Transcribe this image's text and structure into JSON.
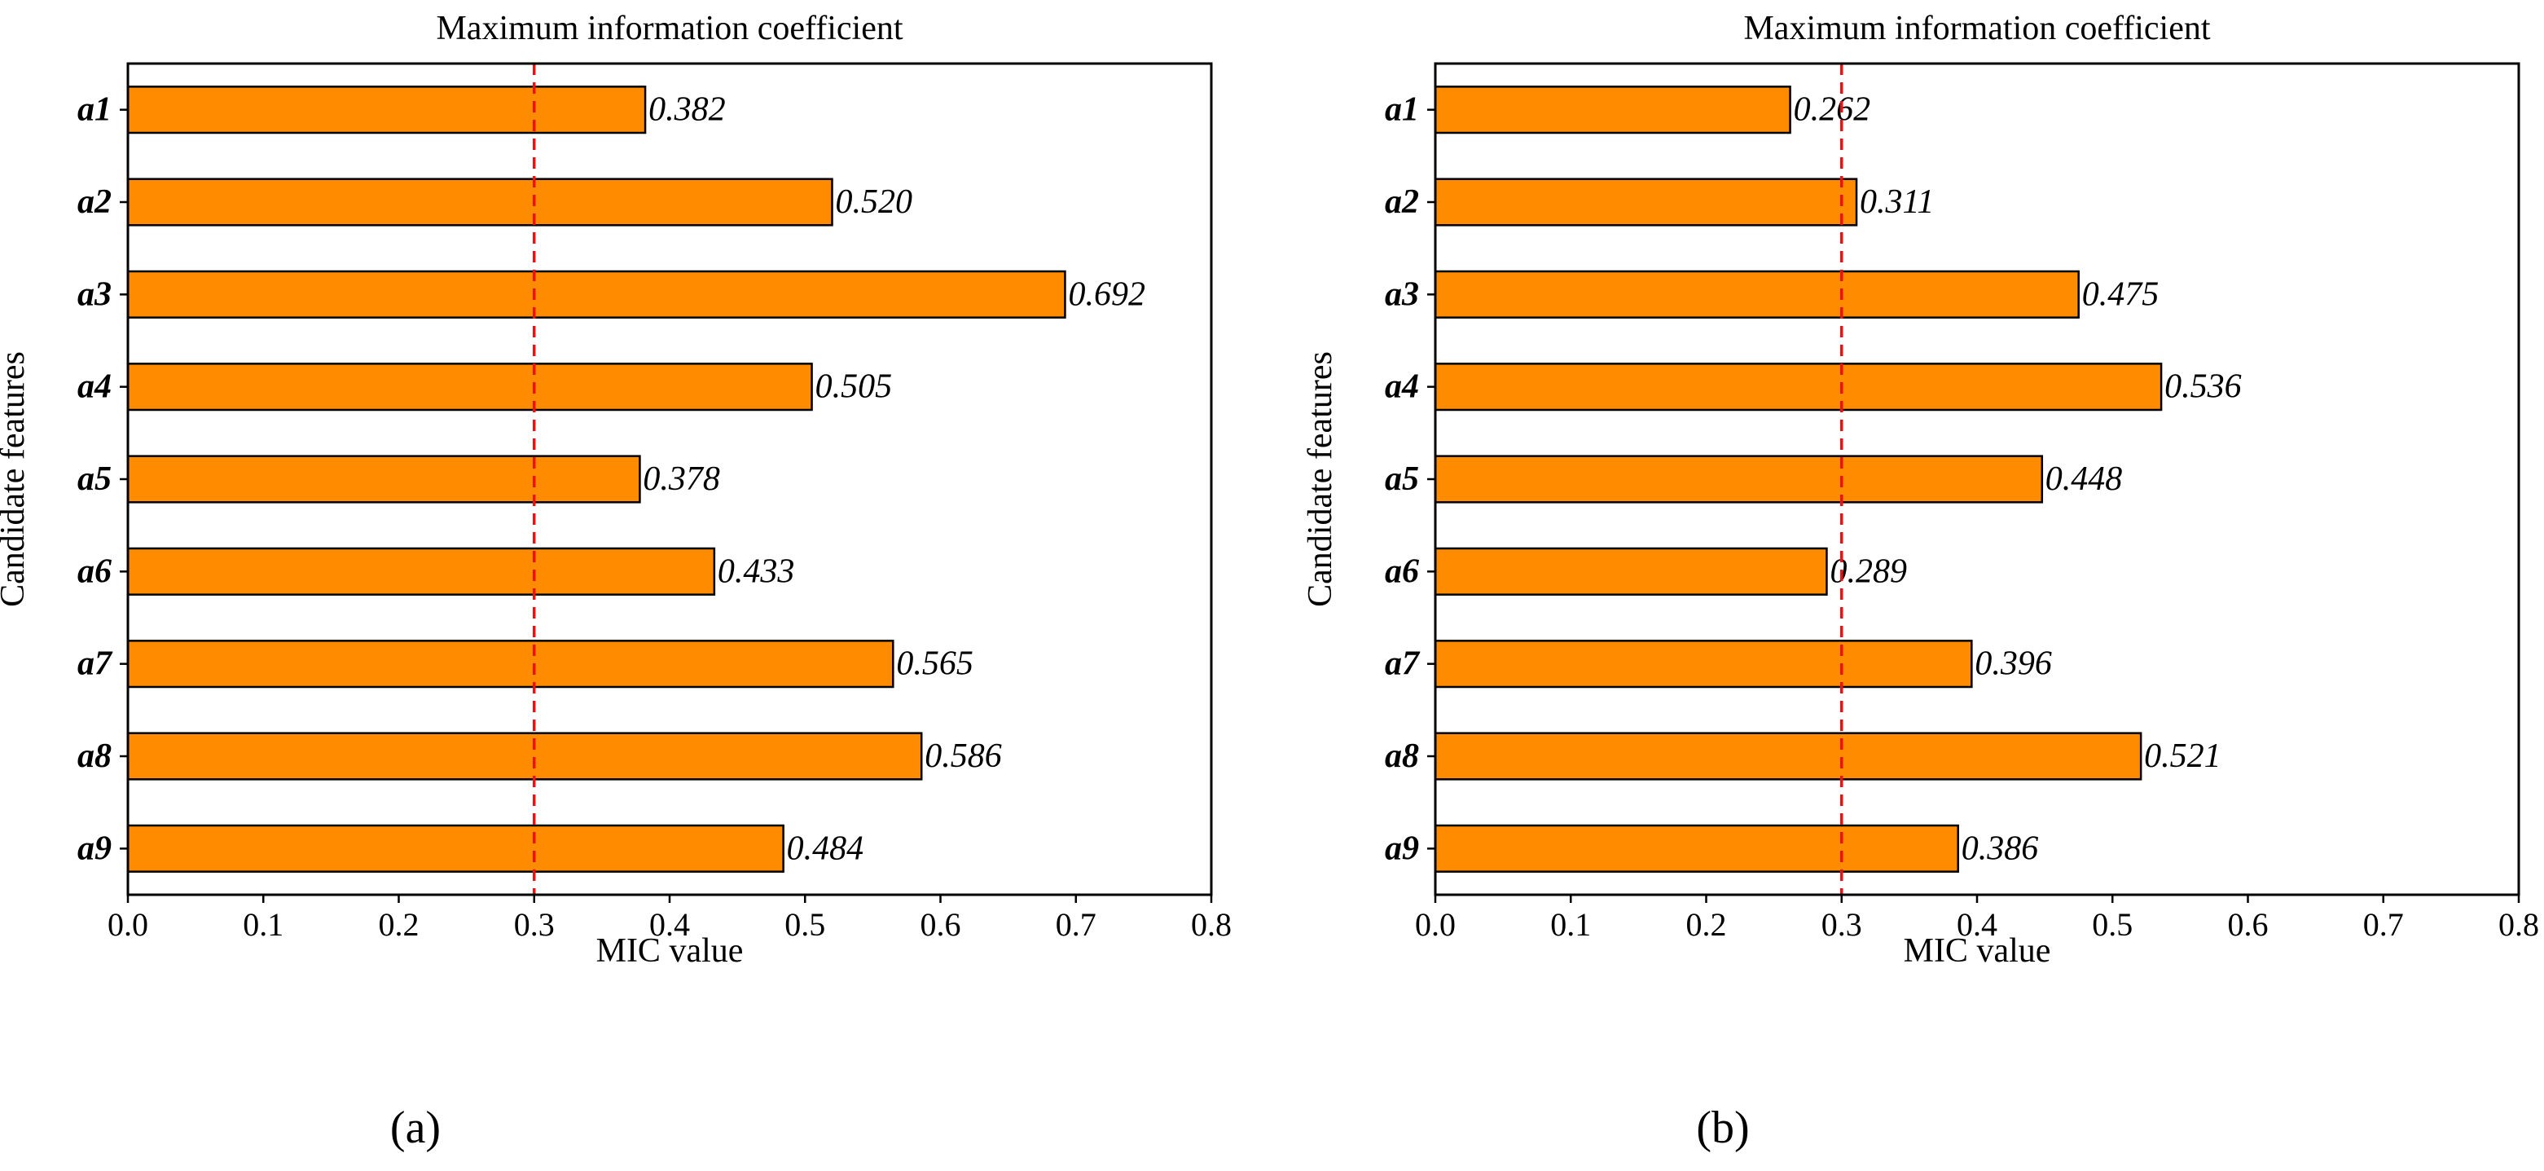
{
  "figure": {
    "colors": {
      "bar": "#ff8c00",
      "reference_line": "#ee1111",
      "edge": "#000000"
    }
  },
  "chart_data": [
    {
      "type": "bar",
      "orientation": "horizontal",
      "panel_label": "(a)",
      "title": "Maximum information coefficient",
      "xlabel": "MIC value",
      "ylabel": "Candidate features",
      "xlim": [
        0,
        0.8
      ],
      "xticks": [
        "0.0",
        "0.1",
        "0.2",
        "0.3",
        "0.4",
        "0.5",
        "0.6",
        "0.7",
        "0.8"
      ],
      "threshold": 0.3,
      "categories": [
        "a1",
        "a2",
        "a3",
        "a4",
        "a5",
        "a6",
        "a7",
        "a8",
        "a9"
      ],
      "values": [
        0.382,
        0.52,
        0.692,
        0.505,
        0.378,
        0.433,
        0.565,
        0.586,
        0.484
      ],
      "value_labels": [
        "0.382",
        "0.520",
        "0.692",
        "0.505",
        "0.378",
        "0.433",
        "0.565",
        "0.586",
        "0.484"
      ]
    },
    {
      "type": "bar",
      "orientation": "horizontal",
      "panel_label": "(b)",
      "title": "Maximum information coefficient",
      "xlabel": "MIC value",
      "ylabel": "Candidate features",
      "xlim": [
        0,
        0.8
      ],
      "xticks": [
        "0.0",
        "0.1",
        "0.2",
        "0.3",
        "0.4",
        "0.5",
        "0.6",
        "0.7",
        "0.8"
      ],
      "threshold": 0.3,
      "categories": [
        "a1",
        "a2",
        "a3",
        "a4",
        "a5",
        "a6",
        "a7",
        "a8",
        "a9"
      ],
      "values": [
        0.262,
        0.311,
        0.475,
        0.536,
        0.448,
        0.289,
        0.396,
        0.521,
        0.386
      ],
      "value_labels": [
        "0.262",
        "0.311",
        "0.475",
        "0.536",
        "0.448",
        "0.289",
        "0.396",
        "0.521",
        "0.386"
      ]
    }
  ]
}
